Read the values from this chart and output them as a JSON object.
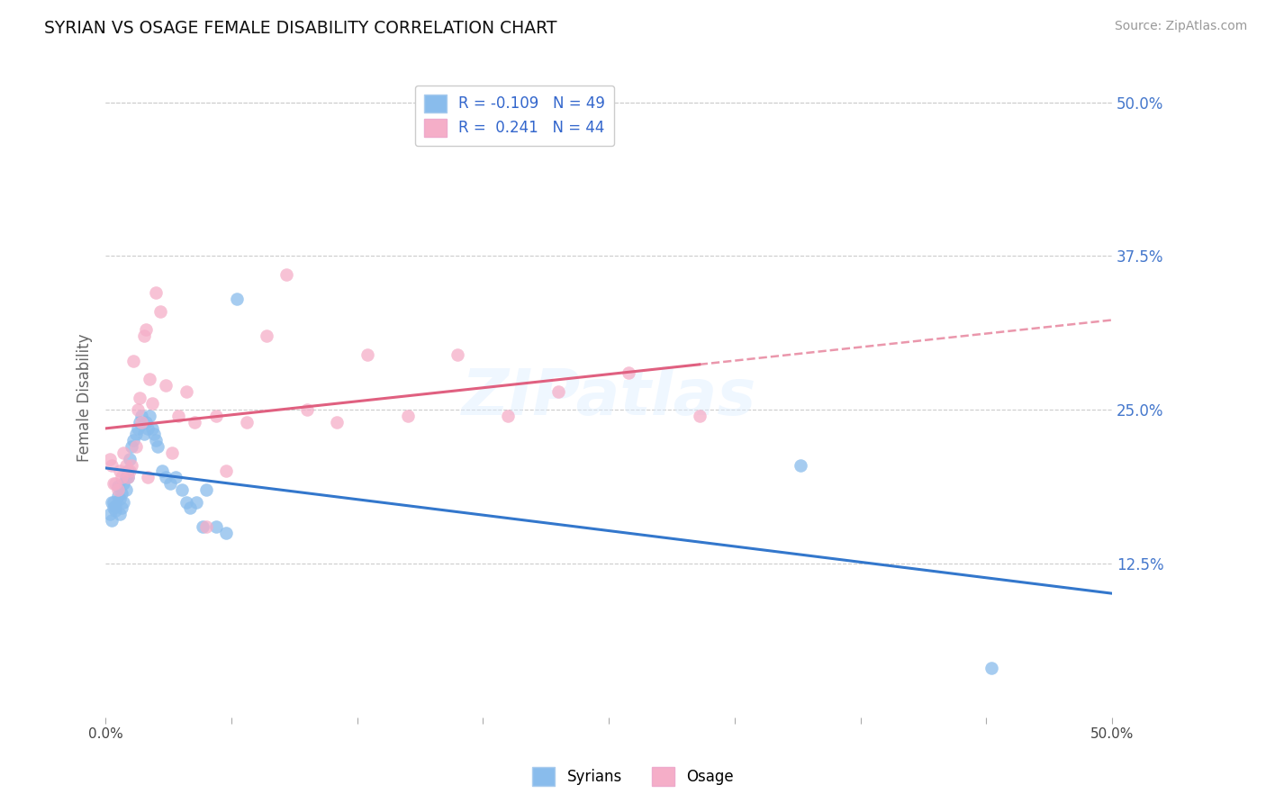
{
  "title": "SYRIAN VS OSAGE FEMALE DISABILITY CORRELATION CHART",
  "source": "Source: ZipAtlas.com",
  "ylabel": "Female Disability",
  "xlim": [
    0.0,
    0.5
  ],
  "ylim": [
    0.0,
    0.5
  ],
  "xtick_positions": [
    0.0,
    0.0625,
    0.125,
    0.1875,
    0.25,
    0.3125,
    0.375,
    0.4375,
    0.5
  ],
  "xtick_labels_show": [
    "0.0%",
    "",
    "",
    "",
    "",
    "",
    "",
    "",
    "50.0%"
  ],
  "ytick_vals_right": [
    0.5,
    0.375,
    0.25,
    0.125
  ],
  "ytick_labels_right": [
    "50.0%",
    "37.5%",
    "25.0%",
    "12.5%"
  ],
  "grid_color": "#cccccc",
  "background_color": "#ffffff",
  "syrians_color": "#89bcec",
  "osage_color": "#f5aec8",
  "syrians_line_color": "#3377cc",
  "osage_line_color": "#e06080",
  "R_syrians": -0.109,
  "N_syrians": 49,
  "R_osage": 0.241,
  "N_osage": 44,
  "legend_label_syrians": "Syrians",
  "legend_label_osage": "Osage",
  "watermark": "ZIPatlas",
  "syrians_x": [
    0.002,
    0.003,
    0.003,
    0.004,
    0.004,
    0.005,
    0.005,
    0.006,
    0.006,
    0.007,
    0.007,
    0.008,
    0.008,
    0.009,
    0.009,
    0.01,
    0.01,
    0.011,
    0.011,
    0.012,
    0.013,
    0.014,
    0.015,
    0.016,
    0.017,
    0.018,
    0.019,
    0.02,
    0.021,
    0.022,
    0.023,
    0.024,
    0.025,
    0.026,
    0.028,
    0.03,
    0.032,
    0.035,
    0.038,
    0.04,
    0.042,
    0.045,
    0.048,
    0.05,
    0.055,
    0.06,
    0.065,
    0.345,
    0.44
  ],
  "syrians_y": [
    0.165,
    0.16,
    0.175,
    0.17,
    0.175,
    0.168,
    0.172,
    0.18,
    0.188,
    0.165,
    0.178,
    0.182,
    0.17,
    0.19,
    0.175,
    0.185,
    0.195,
    0.195,
    0.2,
    0.21,
    0.22,
    0.225,
    0.23,
    0.235,
    0.24,
    0.245,
    0.23,
    0.24,
    0.235,
    0.245,
    0.235,
    0.23,
    0.225,
    0.22,
    0.2,
    0.195,
    0.19,
    0.195,
    0.185,
    0.175,
    0.17,
    0.175,
    0.155,
    0.185,
    0.155,
    0.15,
    0.34,
    0.205,
    0.04
  ],
  "osage_x": [
    0.002,
    0.003,
    0.004,
    0.005,
    0.006,
    0.007,
    0.008,
    0.009,
    0.01,
    0.011,
    0.012,
    0.013,
    0.014,
    0.015,
    0.016,
    0.017,
    0.018,
    0.019,
    0.02,
    0.021,
    0.022,
    0.023,
    0.025,
    0.027,
    0.03,
    0.033,
    0.036,
    0.04,
    0.044,
    0.05,
    0.055,
    0.06,
    0.07,
    0.08,
    0.09,
    0.1,
    0.115,
    0.13,
    0.15,
    0.175,
    0.2,
    0.225,
    0.26,
    0.295
  ],
  "osage_y": [
    0.21,
    0.205,
    0.19,
    0.19,
    0.185,
    0.2,
    0.195,
    0.215,
    0.205,
    0.195,
    0.2,
    0.205,
    0.29,
    0.22,
    0.25,
    0.26,
    0.24,
    0.31,
    0.315,
    0.195,
    0.275,
    0.255,
    0.345,
    0.33,
    0.27,
    0.215,
    0.245,
    0.265,
    0.24,
    0.155,
    0.245,
    0.2,
    0.24,
    0.31,
    0.36,
    0.25,
    0.24,
    0.295,
    0.245,
    0.295,
    0.245,
    0.265,
    0.28,
    0.245
  ]
}
